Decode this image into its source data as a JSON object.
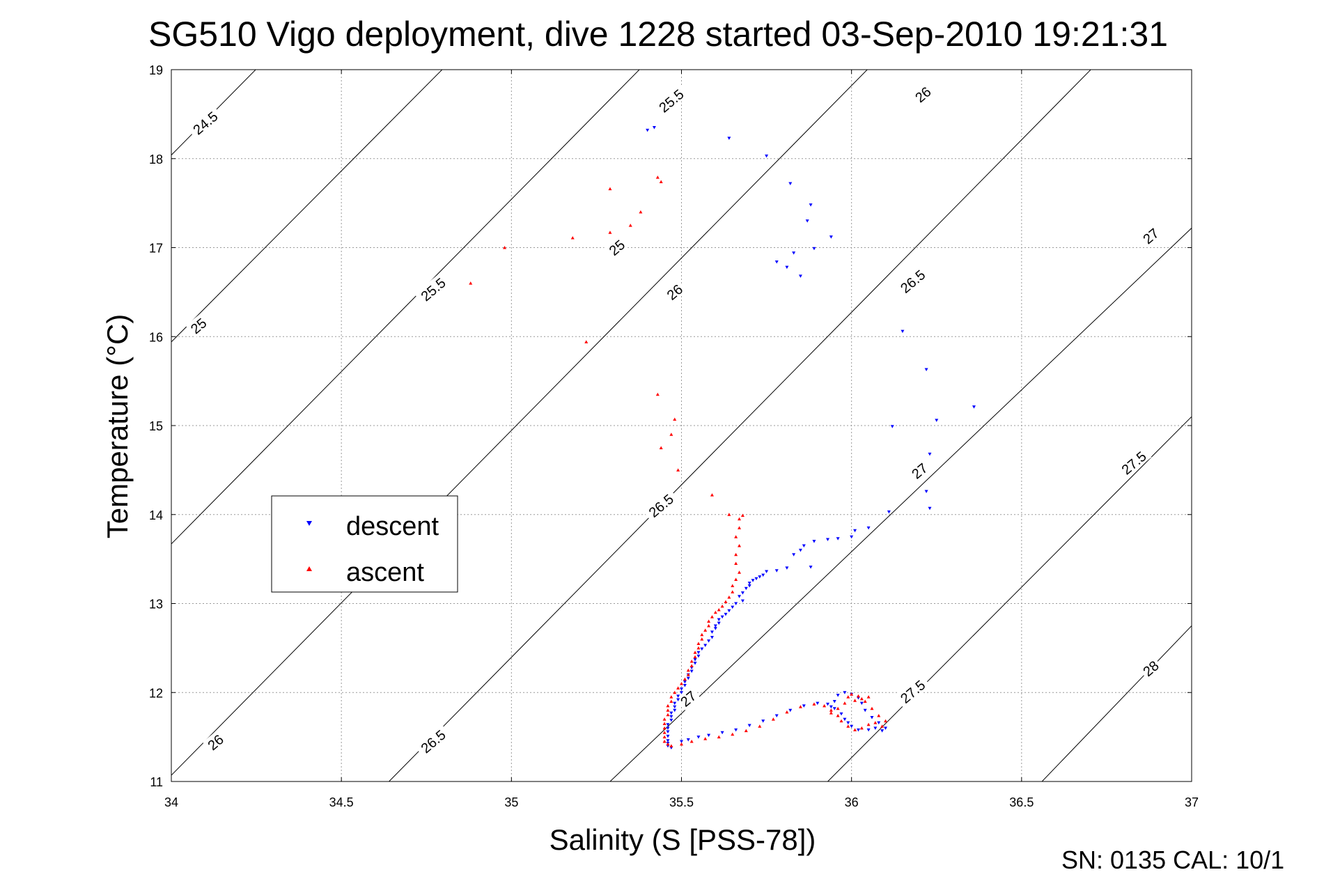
{
  "chart_data": {
    "type": "scatter",
    "title": "SG510 Vigo deployment, dive 1228 started 03-Sep-2010 19:21:31",
    "xlabel": "Salinity (S [PSS-78])",
    "ylabel": "Temperature (°C)",
    "xlim": [
      34,
      37
    ],
    "ylim": [
      11,
      19
    ],
    "x_ticks": [
      34,
      34.5,
      35,
      35.5,
      36,
      36.5,
      37
    ],
    "x_tick_labels": [
      "34",
      "34.5",
      "35",
      "35.5",
      "36",
      "36.5",
      "37"
    ],
    "y_ticks": [
      11,
      12,
      13,
      14,
      15,
      16,
      17,
      18,
      19
    ],
    "y_tick_labels": [
      "11",
      "12",
      "13",
      "14",
      "15",
      "16",
      "17",
      "18",
      "19"
    ],
    "grid": true,
    "legend_position": "left-middle",
    "isopycnals": [
      {
        "sigma": 24.5,
        "lines": [
          [
            34.0,
            18.04
          ],
          [
            35.55,
            24.04
          ]
        ]
      },
      {
        "sigma": 25.0,
        "lines": [
          [
            34.0,
            15.94
          ],
          [
            35.98,
            23.55
          ]
        ]
      },
      {
        "sigma": 25.5,
        "lines": [
          [
            34.0,
            13.67
          ],
          [
            36.68,
            24.05
          ]
        ]
      },
      {
        "sigma": 26.0,
        "lines": [
          [
            34.0,
            11.07
          ],
          [
            36.73,
            21.65
          ]
        ]
      },
      {
        "sigma": 26.5,
        "lines": [
          [
            34.64,
            11.0
          ],
          [
            37.0,
            20.15
          ]
        ]
      },
      {
        "sigma": 27.0,
        "lines": [
          [
            35.29,
            11.0
          ],
          [
            37.0,
            17.22
          ]
        ]
      },
      {
        "sigma": 27.5,
        "lines": [
          [
            35.93,
            11.0
          ],
          [
            37.0,
            15.1
          ]
        ]
      },
      {
        "sigma": 28.0,
        "lines": [
          [
            36.56,
            11.0
          ],
          [
            37.0,
            12.75
          ]
        ]
      }
    ],
    "isopycnal_labels": [
      {
        "text": "24.5",
        "s": 34.1,
        "t": 18.4
      },
      {
        "text": "25",
        "s": 35.31,
        "t": 17.0
      },
      {
        "text": "25",
        "s": 34.08,
        "t": 16.12
      },
      {
        "text": "25.5",
        "s": 35.47,
        "t": 18.65
      },
      {
        "text": "25.5",
        "s": 34.77,
        "t": 16.53
      },
      {
        "text": "26",
        "s": 36.21,
        "t": 18.72
      },
      {
        "text": "26",
        "s": 35.48,
        "t": 16.5
      },
      {
        "text": "26",
        "s": 34.13,
        "t": 11.44
      },
      {
        "text": "26.5",
        "s": 36.18,
        "t": 16.62
      },
      {
        "text": "26.5",
        "s": 35.44,
        "t": 14.1
      },
      {
        "text": "26.5",
        "s": 34.77,
        "t": 11.45
      },
      {
        "text": "27",
        "s": 36.88,
        "t": 17.13
      },
      {
        "text": "27",
        "s": 36.2,
        "t": 14.49
      },
      {
        "text": "27",
        "s": 35.52,
        "t": 11.93
      },
      {
        "text": "27.5",
        "s": 36.83,
        "t": 14.58
      },
      {
        "text": "27.5",
        "s": 36.18,
        "t": 12.01
      },
      {
        "text": "28",
        "s": 36.88,
        "t": 12.27
      }
    ],
    "series": [
      {
        "name": "descent",
        "color": "#0000ff",
        "marker": "triangle-down",
        "points": [
          [
            35.4,
            18.32
          ],
          [
            35.42,
            18.35
          ],
          [
            35.64,
            18.23
          ],
          [
            35.75,
            18.03
          ],
          [
            35.82,
            17.72
          ],
          [
            35.88,
            17.48
          ],
          [
            35.87,
            17.3
          ],
          [
            35.94,
            17.12
          ],
          [
            35.89,
            16.99
          ],
          [
            35.83,
            16.94
          ],
          [
            35.78,
            16.84
          ],
          [
            35.81,
            16.78
          ],
          [
            35.85,
            16.68
          ],
          [
            36.15,
            16.06
          ],
          [
            36.22,
            15.63
          ],
          [
            36.36,
            15.21
          ],
          [
            36.25,
            15.06
          ],
          [
            36.12,
            14.99
          ],
          [
            36.23,
            14.68
          ],
          [
            36.22,
            14.26
          ],
          [
            36.23,
            14.07
          ],
          [
            36.11,
            14.03
          ],
          [
            36.05,
            13.85
          ],
          [
            36.01,
            13.82
          ],
          [
            36.0,
            13.75
          ],
          [
            35.96,
            13.73
          ],
          [
            35.93,
            13.72
          ],
          [
            35.89,
            13.7
          ],
          [
            35.86,
            13.65
          ],
          [
            35.85,
            13.6
          ],
          [
            35.83,
            13.55
          ],
          [
            35.88,
            13.41
          ],
          [
            35.81,
            13.4
          ],
          [
            35.78,
            13.37
          ],
          [
            35.75,
            13.36
          ],
          [
            35.74,
            13.32
          ],
          [
            35.73,
            13.3
          ],
          [
            35.72,
            13.28
          ],
          [
            35.71,
            13.26
          ],
          [
            35.7,
            13.23
          ],
          [
            35.7,
            13.2
          ],
          [
            35.69,
            13.17
          ],
          [
            35.68,
            13.12
          ],
          [
            35.67,
            13.08
          ],
          [
            35.68,
            13.03
          ],
          [
            35.66,
            13.0
          ],
          [
            35.65,
            12.96
          ],
          [
            35.64,
            12.92
          ],
          [
            35.63,
            12.88
          ],
          [
            35.62,
            12.85
          ],
          [
            35.61,
            12.82
          ],
          [
            35.61,
            12.78
          ],
          [
            35.6,
            12.75
          ],
          [
            35.6,
            12.72
          ],
          [
            35.59,
            12.68
          ],
          [
            35.59,
            12.62
          ],
          [
            35.58,
            12.58
          ],
          [
            35.57,
            12.53
          ],
          [
            35.56,
            12.49
          ],
          [
            35.55,
            12.45
          ],
          [
            35.55,
            12.41
          ],
          [
            35.54,
            12.37
          ],
          [
            35.54,
            12.33
          ],
          [
            35.53,
            12.28
          ],
          [
            35.53,
            12.24
          ],
          [
            35.52,
            12.2
          ],
          [
            35.52,
            12.16
          ],
          [
            35.51,
            12.12
          ],
          [
            35.51,
            12.08
          ],
          [
            35.5,
            12.04
          ],
          [
            35.5,
            12.0
          ],
          [
            35.49,
            11.96
          ],
          [
            35.49,
            11.92
          ],
          [
            35.48,
            11.88
          ],
          [
            35.48,
            11.84
          ],
          [
            35.48,
            11.8
          ],
          [
            35.47,
            11.77
          ],
          [
            35.47,
            11.73
          ],
          [
            35.47,
            11.69
          ],
          [
            35.46,
            11.64
          ],
          [
            35.46,
            11.6
          ],
          [
            35.46,
            11.56
          ],
          [
            35.46,
            11.51
          ],
          [
            35.46,
            11.46
          ],
          [
            35.46,
            11.43
          ],
          [
            35.46,
            11.4
          ],
          [
            35.47,
            11.38
          ],
          [
            35.5,
            11.45
          ],
          [
            35.52,
            11.47
          ],
          [
            35.55,
            11.5
          ],
          [
            35.58,
            11.52
          ],
          [
            35.62,
            11.55
          ],
          [
            35.66,
            11.58
          ],
          [
            35.7,
            11.63
          ],
          [
            35.74,
            11.68
          ],
          [
            35.78,
            11.74
          ],
          [
            35.82,
            11.8
          ],
          [
            35.86,
            11.85
          ],
          [
            35.9,
            11.88
          ],
          [
            35.93,
            11.87
          ],
          [
            35.95,
            11.82
          ],
          [
            35.97,
            11.76
          ],
          [
            35.98,
            11.7
          ],
          [
            35.99,
            11.66
          ],
          [
            36.0,
            11.62
          ],
          [
            36.02,
            11.58
          ],
          [
            36.05,
            11.58
          ],
          [
            36.07,
            11.6
          ],
          [
            36.09,
            11.57
          ],
          [
            36.1,
            11.6
          ],
          [
            36.08,
            11.66
          ],
          [
            36.06,
            11.72
          ],
          [
            36.04,
            11.8
          ],
          [
            36.03,
            11.88
          ],
          [
            36.02,
            11.94
          ],
          [
            36.0,
            11.98
          ],
          [
            35.98,
            12.0
          ],
          [
            35.96,
            11.97
          ],
          [
            35.95,
            11.9
          ],
          [
            35.94,
            11.84
          ]
        ]
      },
      {
        "name": "ascent",
        "color": "#ff0000",
        "marker": "triangle-up",
        "points": [
          [
            34.88,
            16.6
          ],
          [
            34.98,
            17.0
          ],
          [
            35.18,
            17.11
          ],
          [
            35.22,
            15.94
          ],
          [
            35.29,
            17.66
          ],
          [
            35.29,
            17.17
          ],
          [
            35.35,
            17.25
          ],
          [
            35.38,
            17.4
          ],
          [
            35.43,
            17.79
          ],
          [
            35.44,
            17.74
          ],
          [
            35.43,
            15.35
          ],
          [
            35.48,
            15.07
          ],
          [
            35.47,
            14.9
          ],
          [
            35.44,
            14.75
          ],
          [
            35.49,
            14.5
          ],
          [
            35.59,
            14.22
          ],
          [
            35.64,
            14.0
          ],
          [
            35.68,
            13.99
          ],
          [
            35.67,
            13.95
          ],
          [
            35.67,
            13.85
          ],
          [
            35.66,
            13.75
          ],
          [
            35.67,
            13.65
          ],
          [
            35.66,
            13.55
          ],
          [
            35.66,
            13.45
          ],
          [
            35.67,
            13.35
          ],
          [
            35.66,
            13.27
          ],
          [
            35.65,
            13.2
          ],
          [
            35.65,
            13.13
          ],
          [
            35.64,
            13.07
          ],
          [
            35.63,
            13.02
          ],
          [
            35.62,
            12.97
          ],
          [
            35.61,
            12.93
          ],
          [
            35.6,
            12.9
          ],
          [
            35.59,
            12.85
          ],
          [
            35.58,
            12.8
          ],
          [
            35.58,
            12.75
          ],
          [
            35.57,
            12.7
          ],
          [
            35.56,
            12.65
          ],
          [
            35.56,
            12.6
          ],
          [
            35.55,
            12.55
          ],
          [
            35.55,
            12.5
          ],
          [
            35.54,
            12.45
          ],
          [
            35.54,
            12.4
          ],
          [
            35.53,
            12.35
          ],
          [
            35.53,
            12.3
          ],
          [
            35.52,
            12.25
          ],
          [
            35.52,
            12.2
          ],
          [
            35.51,
            12.15
          ],
          [
            35.5,
            12.1
          ],
          [
            35.49,
            12.05
          ],
          [
            35.48,
            12.0
          ],
          [
            35.47,
            11.95
          ],
          [
            35.47,
            11.9
          ],
          [
            35.46,
            11.85
          ],
          [
            35.46,
            11.8
          ],
          [
            35.46,
            11.75
          ],
          [
            35.45,
            11.7
          ],
          [
            35.45,
            11.65
          ],
          [
            35.45,
            11.6
          ],
          [
            35.45,
            11.55
          ],
          [
            35.45,
            11.5
          ],
          [
            35.45,
            11.45
          ],
          [
            35.46,
            11.42
          ],
          [
            35.47,
            11.4
          ],
          [
            35.5,
            11.42
          ],
          [
            35.53,
            11.45
          ],
          [
            35.57,
            11.48
          ],
          [
            35.61,
            11.5
          ],
          [
            35.65,
            11.53
          ],
          [
            35.69,
            11.57
          ],
          [
            35.73,
            11.62
          ],
          [
            35.77,
            11.7
          ],
          [
            35.81,
            11.78
          ],
          [
            35.85,
            11.84
          ],
          [
            35.89,
            11.87
          ],
          [
            35.92,
            11.85
          ],
          [
            35.94,
            11.8
          ],
          [
            35.96,
            11.74
          ],
          [
            35.97,
            11.68
          ],
          [
            35.99,
            11.62
          ],
          [
            36.01,
            11.58
          ],
          [
            36.03,
            11.6
          ],
          [
            36.05,
            11.64
          ],
          [
            36.07,
            11.66
          ],
          [
            36.09,
            11.62
          ],
          [
            36.1,
            11.68
          ],
          [
            36.08,
            11.74
          ],
          [
            36.06,
            11.82
          ],
          [
            36.04,
            11.9
          ],
          [
            36.02,
            11.96
          ],
          [
            36.0,
            11.98
          ],
          [
            35.99,
            11.95
          ],
          [
            35.98,
            11.88
          ],
          [
            35.96,
            11.82
          ],
          [
            35.94,
            11.77
          ],
          [
            36.05,
            11.95
          ],
          [
            36.03,
            11.93
          ],
          [
            36.01,
            11.91
          ]
        ]
      }
    ],
    "legend": [
      {
        "label": "descent",
        "color": "#0000ff",
        "marker": "triangle-down"
      },
      {
        "label": "ascent",
        "color": "#ff0000",
        "marker": "triangle-up"
      }
    ]
  },
  "footer": {
    "text": "SN: 0135  CAL: 10/1"
  }
}
